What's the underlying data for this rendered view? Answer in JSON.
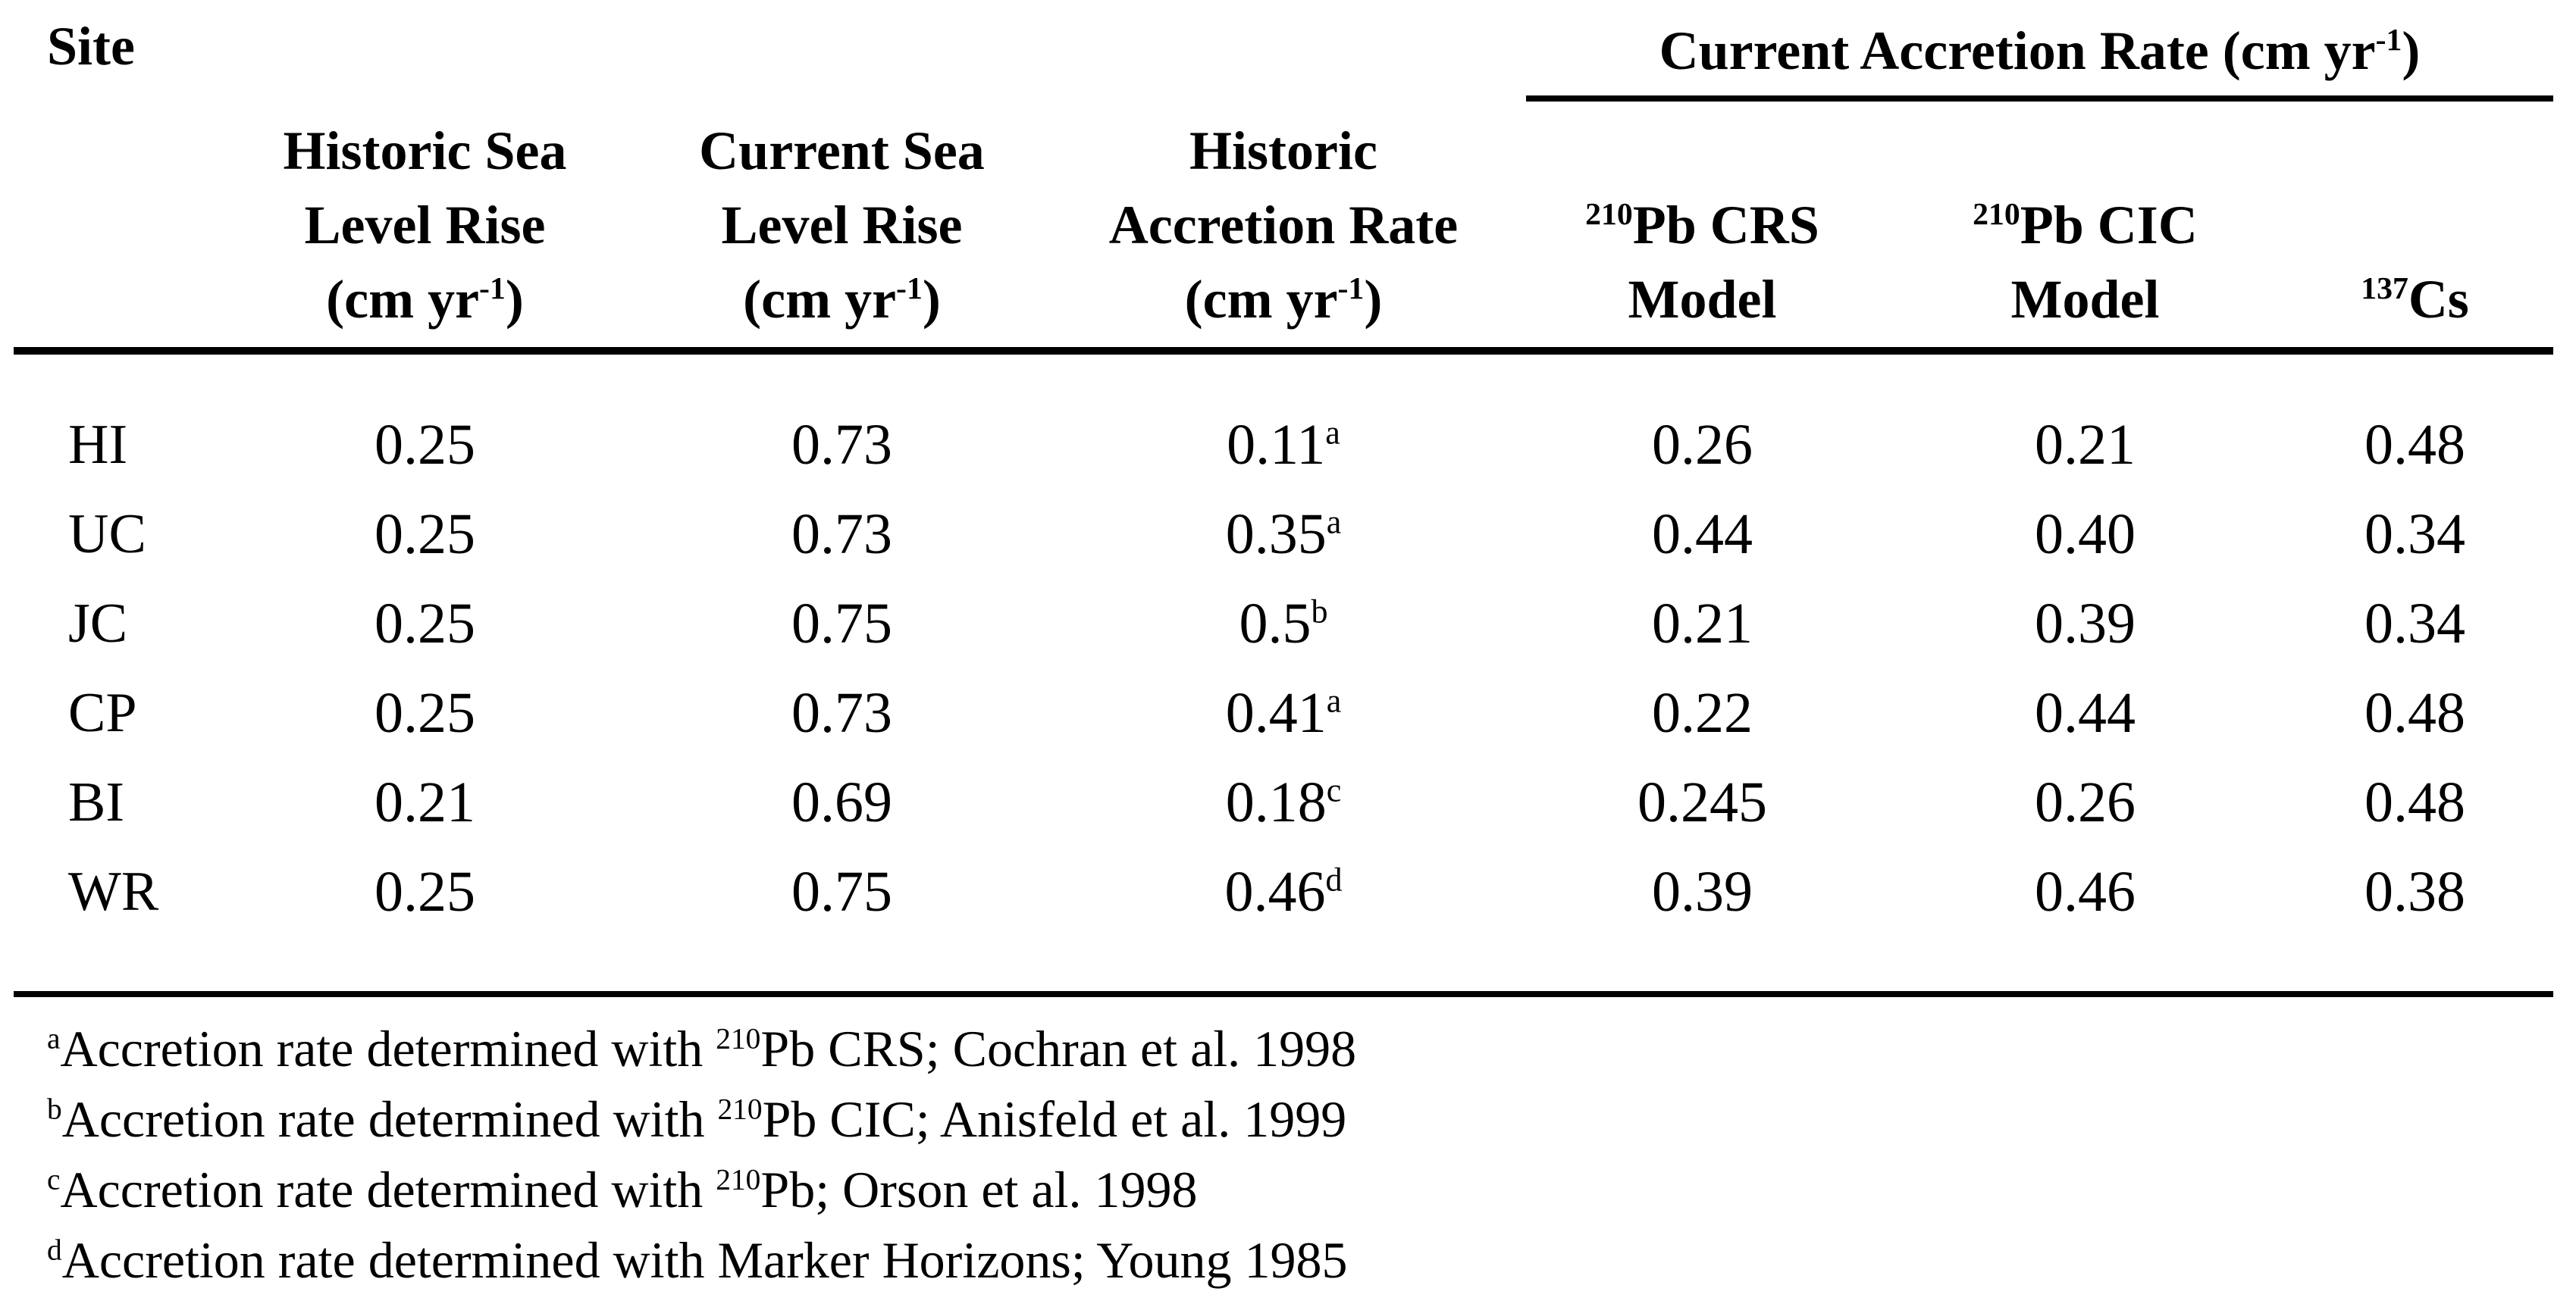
{
  "table": {
    "site_header": "Site",
    "group_header": "Current Accretion Rate (cm yr^{-1})",
    "columns": {
      "historic_slr": {
        "lines": [
          "Historic Sea",
          "Level Rise",
          "(cm yr^{-1})"
        ]
      },
      "current_slr": {
        "lines": [
          "Current Sea",
          "Level Rise",
          "(cm yr^{-1})"
        ]
      },
      "historic_acc": {
        "lines": [
          "Historic",
          "Accretion Rate",
          "(cm yr^{-1})"
        ]
      },
      "pb_crs": {
        "lines": [
          "^{210}Pb CRS",
          "Model"
        ]
      },
      "pb_cic": {
        "lines": [
          "^{210}Pb CIC",
          "Model"
        ]
      },
      "cs137": {
        "lines": [
          "^{137}Cs"
        ]
      }
    },
    "rows": [
      {
        "site": "HI",
        "historic_slr": "0.25",
        "current_slr": "0.73",
        "historic_acc": "0.11^{a}",
        "pb_crs": "0.26",
        "pb_cic": "0.21",
        "cs137": "0.48"
      },
      {
        "site": "UC",
        "historic_slr": "0.25",
        "current_slr": "0.73",
        "historic_acc": "0.35^{a}",
        "pb_crs": "0.44",
        "pb_cic": "0.40",
        "cs137": "0.34"
      },
      {
        "site": "JC",
        "historic_slr": "0.25",
        "current_slr": "0.75",
        "historic_acc": "0.5^{b}",
        "pb_crs": "0.21",
        "pb_cic": "0.39",
        "cs137": "0.34"
      },
      {
        "site": "CP",
        "historic_slr": "0.25",
        "current_slr": "0.73",
        "historic_acc": "0.41^{a}",
        "pb_crs": "0.22",
        "pb_cic": "0.44",
        "cs137": "0.48"
      },
      {
        "site": "BI",
        "historic_slr": "0.21",
        "current_slr": "0.69",
        "historic_acc": "0.18^{c}",
        "pb_crs": "0.245",
        "pb_cic": "0.26",
        "cs137": "0.48"
      },
      {
        "site": "WR",
        "historic_slr": "0.25",
        "current_slr": "0.75",
        "historic_acc": "0.46^{d}",
        "pb_crs": "0.39",
        "pb_cic": "0.46",
        "cs137": "0.38"
      }
    ]
  },
  "footnotes": [
    "^{a}Accretion rate determined with ^{210}Pb CRS; Cochran et al. 1998",
    "^{b}Accretion rate determined with ^{210}Pb CIC; Anisfeld et al. 1999",
    "^{c}Accretion rate determined with ^{210}Pb; Orson et al. 1998",
    "^{d}Accretion rate determined with Marker Horizons; Young 1985"
  ]
}
